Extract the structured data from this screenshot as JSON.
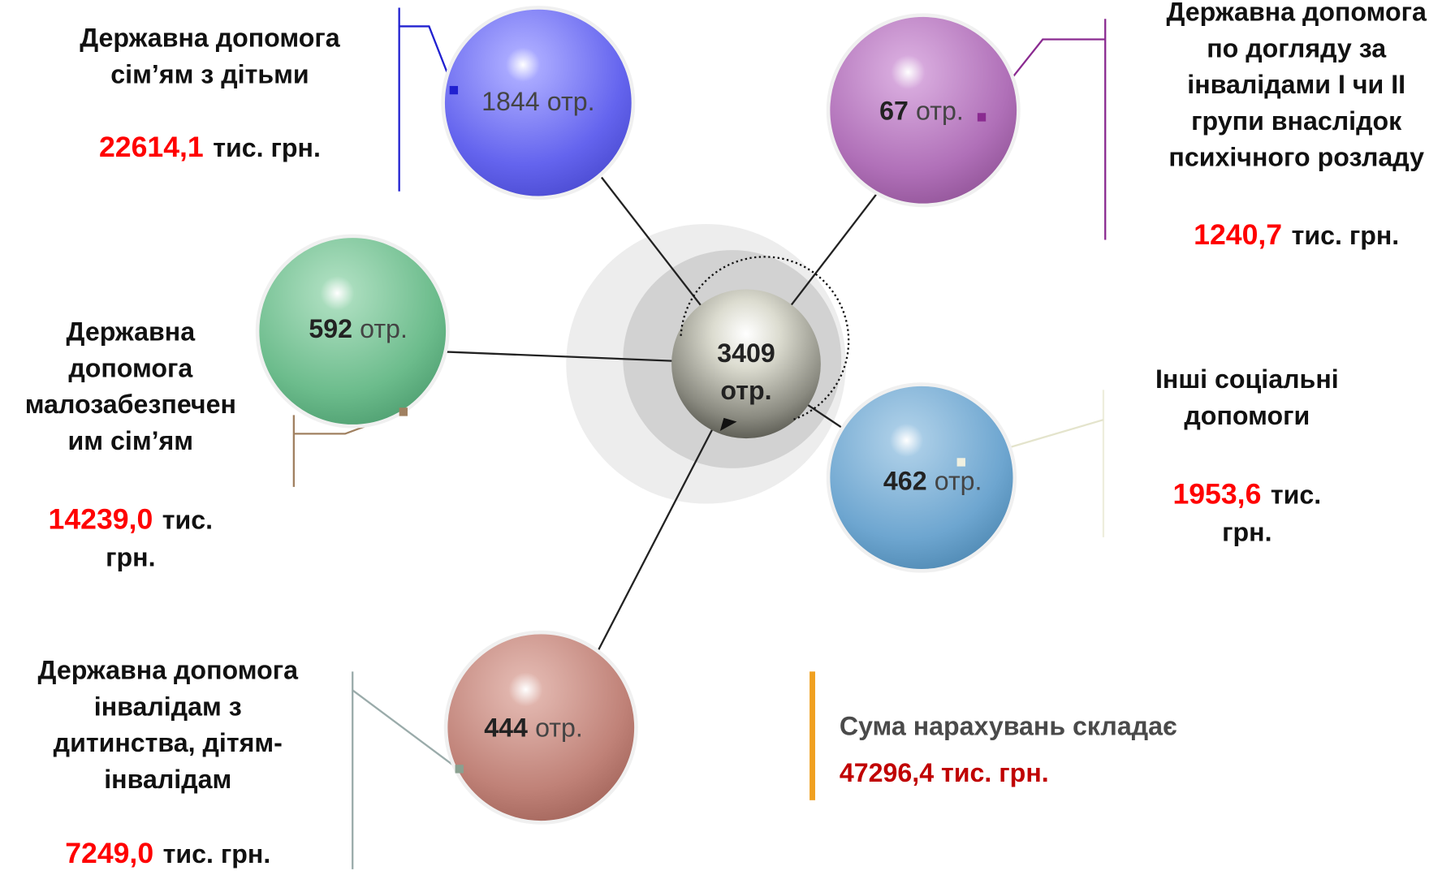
{
  "center": {
    "count": 3409,
    "unit": "отр."
  },
  "nodes": [
    {
      "count": 1844,
      "unit": "отр.",
      "label": [
        "Державна допомога",
        "сім’ям з дітьми"
      ],
      "amount": "22614,1",
      "amount_unit": [
        "тис. грн."
      ]
    },
    {
      "count": 67,
      "unit": "отр.",
      "label": [
        "Державна допомога",
        "по догляду за",
        "інвалідами І чи ІІ",
        "групи внаслідок",
        "психічного розладу"
      ],
      "amount": "1240,7",
      "amount_unit": [
        "тис. грн."
      ]
    },
    {
      "count": 592,
      "unit": "отр.",
      "label": [
        "Державна",
        "допомога",
        "малозабезпечен",
        "им сім’ям"
      ],
      "amount": "14239,0",
      "amount_unit": [
        "тис.",
        "грн."
      ]
    },
    {
      "count": 462,
      "unit": "отр.",
      "label": [
        "Інші соціальні",
        "допомоги"
      ],
      "amount": "1953,6",
      "amount_unit": [
        "тис.",
        "грн."
      ]
    },
    {
      "count": 444,
      "unit": "отр.",
      "label": [
        "Державна допомога",
        "інвалідам з",
        "дитинства, дітям-",
        "інвалідам"
      ],
      "amount": "7249,0",
      "amount_unit": [
        "тис. грн."
      ]
    }
  ],
  "total": {
    "text": "Сума нарахувань складає",
    "amount": "47296,4 тис. грн."
  }
}
